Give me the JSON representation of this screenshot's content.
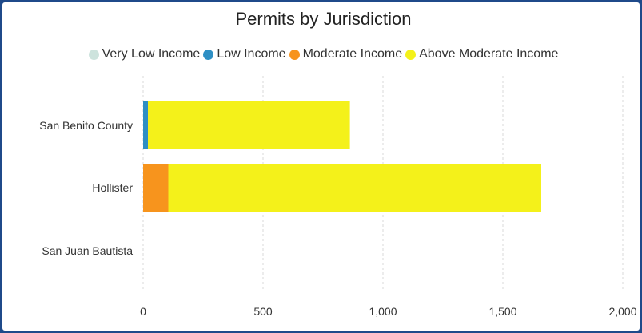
{
  "chart_data": {
    "type": "bar",
    "orientation": "horizontal",
    "stacked": true,
    "title": "Permits by Jurisdiction",
    "categories": [
      "San Benito County",
      "Hollister",
      "San Juan Bautista"
    ],
    "series": [
      {
        "name": "Very Low Income",
        "color": "#cde3dd",
        "values": [
          0,
          0,
          0
        ]
      },
      {
        "name": "Low Income",
        "color": "#2e8fc4",
        "values": [
          20,
          0,
          0
        ]
      },
      {
        "name": "Moderate Income",
        "color": "#f7941d",
        "values": [
          0,
          105,
          0
        ]
      },
      {
        "name": "Above Moderate Income",
        "color": "#f4f11a",
        "values": [
          842,
          1555,
          0
        ]
      }
    ],
    "xlim": [
      0,
      2000
    ],
    "xticks": [
      0,
      500,
      1000,
      1500,
      2000
    ],
    "xtick_labels": [
      "0",
      "500",
      "1,000",
      "1,500",
      "2,000"
    ],
    "grid": "vertical-dashed",
    "legend_position": "top"
  }
}
